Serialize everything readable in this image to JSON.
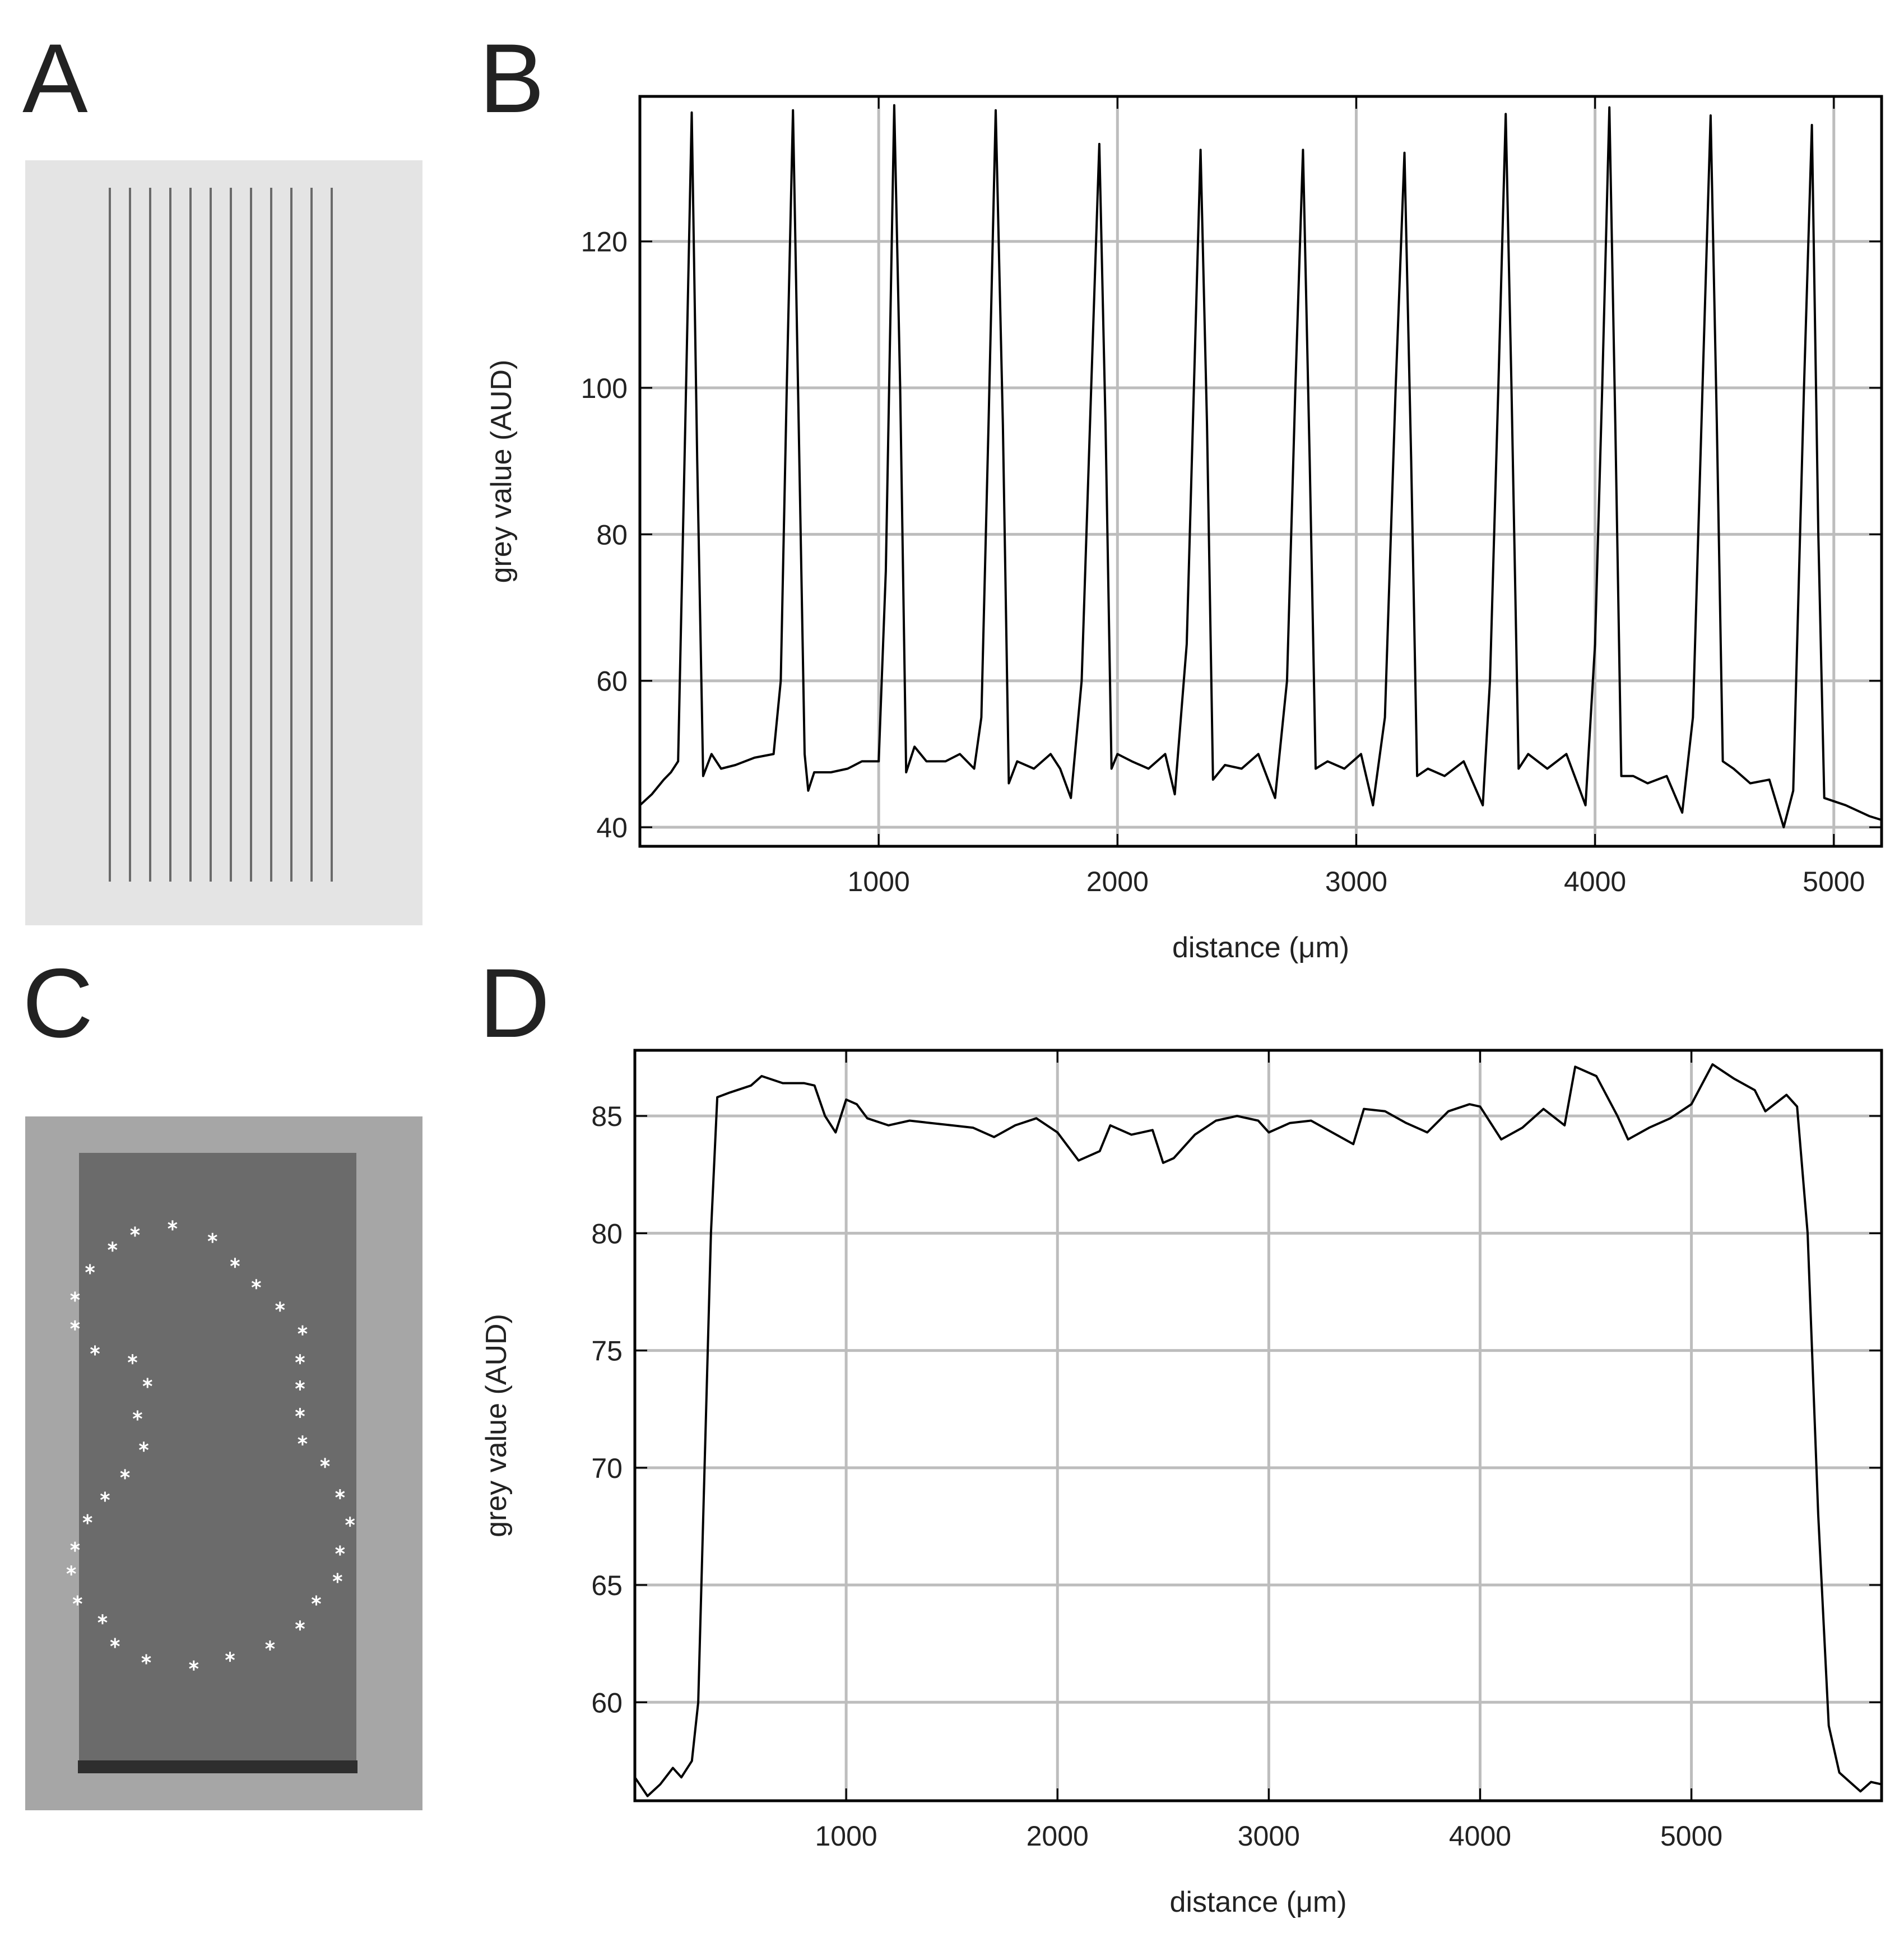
{
  "panel_labels": [
    "A",
    "B",
    "C",
    "D"
  ],
  "chart_data": [
    {
      "type": "line",
      "xlabel": "distance (μm)",
      "ylabel": "grey value (AUD)",
      "xlim": [
        0,
        5200
      ],
      "ylim": [
        37.4,
        139.8
      ],
      "xticks": [
        1000,
        2000,
        3000,
        4000,
        5000
      ],
      "yticks": [
        40,
        60,
        80,
        100,
        120
      ],
      "grid": true,
      "series": [
        {
          "color": "#000000",
          "x": [
            0,
            50,
            100,
            130,
            160,
            190,
            217,
            240,
            265,
            300,
            340,
            400,
            480,
            560,
            590,
            615,
            641,
            665,
            690,
            705,
            730,
            800,
            870,
            930,
            1000,
            1030,
            1065,
            1090,
            1115,
            1150,
            1200,
            1280,
            1340,
            1400,
            1430,
            1460,
            1490,
            1520,
            1545,
            1580,
            1650,
            1720,
            1760,
            1805,
            1850,
            1890,
            1924,
            1950,
            1975,
            2000,
            2060,
            2130,
            2200,
            2240,
            2290,
            2320,
            2348,
            2375,
            2400,
            2450,
            2520,
            2590,
            2660,
            2710,
            2745,
            2777,
            2805,
            2830,
            2880,
            2950,
            3020,
            3070,
            3120,
            3165,
            3202,
            3230,
            3255,
            3300,
            3370,
            3450,
            3530,
            3560,
            3595,
            3626,
            3650,
            3680,
            3720,
            3800,
            3880,
            3960,
            4000,
            4030,
            4060,
            4085,
            4110,
            4160,
            4220,
            4300,
            4365,
            4410,
            4450,
            4484,
            4510,
            4535,
            4580,
            4650,
            4730,
            4790,
            4830,
            4875,
            4908,
            4935,
            4960,
            5050,
            5150,
            5200
          ],
          "values": [
            43,
            44.5,
            46.5,
            47.5,
            49,
            95,
            137.6,
            90,
            47,
            50,
            48,
            48.5,
            49.5,
            50,
            60,
            100,
            137.9,
            95,
            50,
            45,
            47.5,
            47.5,
            48,
            49,
            49,
            75,
            138.6,
            100,
            47.5,
            51,
            49,
            49,
            50,
            48,
            55,
            95,
            137.9,
            95,
            46,
            49,
            48,
            50,
            48,
            44,
            60,
            100,
            133.3,
            95,
            48,
            50,
            49,
            48,
            50,
            44.5,
            65,
            100,
            132.5,
            95,
            46.5,
            48.5,
            48,
            50,
            44,
            60,
            100,
            132.5,
            90,
            48,
            49,
            48,
            50,
            43,
            55,
            100,
            132.1,
            90,
            47,
            48,
            47,
            49,
            43,
            60,
            100,
            137.4,
            100,
            48,
            50,
            48,
            50,
            43,
            65,
            100,
            138.3,
            95,
            47,
            47,
            46,
            47,
            42,
            55,
            100,
            137.2,
            95,
            49,
            48,
            46,
            46.5,
            40,
            45,
            100,
            135.9,
            80,
            44,
            43,
            41.5,
            41
          ]
        }
      ]
    },
    {
      "type": "line",
      "xlabel": "distance (μm)",
      "ylabel": "grey value (AUD)",
      "xlim": [
        0,
        5900
      ],
      "ylim": [
        55.8,
        87.8
      ],
      "xticks": [
        1000,
        2000,
        3000,
        4000,
        5000
      ],
      "yticks": [
        60,
        65,
        70,
        75,
        80,
        85
      ],
      "grid": true,
      "series": [
        {
          "color": "#000000",
          "x": [
            0,
            60,
            120,
            180,
            220,
            270,
            300,
            330,
            360,
            390,
            450,
            550,
            600,
            700,
            800,
            850,
            900,
            950,
            1000,
            1050,
            1100,
            1200,
            1300,
            1400,
            1500,
            1600,
            1700,
            1800,
            1900,
            2000,
            2100,
            2200,
            2250,
            2350,
            2450,
            2500,
            2550,
            2650,
            2750,
            2850,
            2950,
            3000,
            3100,
            3200,
            3300,
            3400,
            3450,
            3550,
            3650,
            3750,
            3850,
            3950,
            4000,
            4100,
            4200,
            4300,
            4400,
            4450,
            4550,
            4650,
            4700,
            4800,
            4900,
            5000,
            5100,
            5200,
            5300,
            5350,
            5450,
            5500,
            5550,
            5600,
            5650,
            5700,
            5800,
            5850,
            5900
          ],
          "values": [
            56.8,
            56,
            56.5,
            57.2,
            56.8,
            57.5,
            60,
            70,
            80,
            85.8,
            86,
            86.3,
            86.7,
            86.4,
            86.4,
            86.3,
            85,
            84.3,
            85.7,
            85.5,
            84.9,
            84.6,
            84.8,
            84.7,
            84.6,
            84.5,
            84.1,
            84.6,
            84.9,
            84.3,
            83.1,
            83.5,
            84.6,
            84.2,
            84.4,
            83,
            83.2,
            84.2,
            84.8,
            85,
            84.8,
            84.3,
            84.7,
            84.8,
            84.3,
            83.8,
            85.3,
            85.2,
            84.7,
            84.3,
            85.2,
            85.5,
            85.4,
            84,
            84.5,
            85.3,
            84.6,
            87.1,
            86.7,
            85,
            84,
            84.5,
            84.9,
            85.5,
            87.2,
            86.6,
            86.1,
            85.2,
            85.9,
            85.4,
            80,
            68,
            59,
            57,
            56.2,
            56.6,
            56.5
          ]
        }
      ]
    }
  ]
}
